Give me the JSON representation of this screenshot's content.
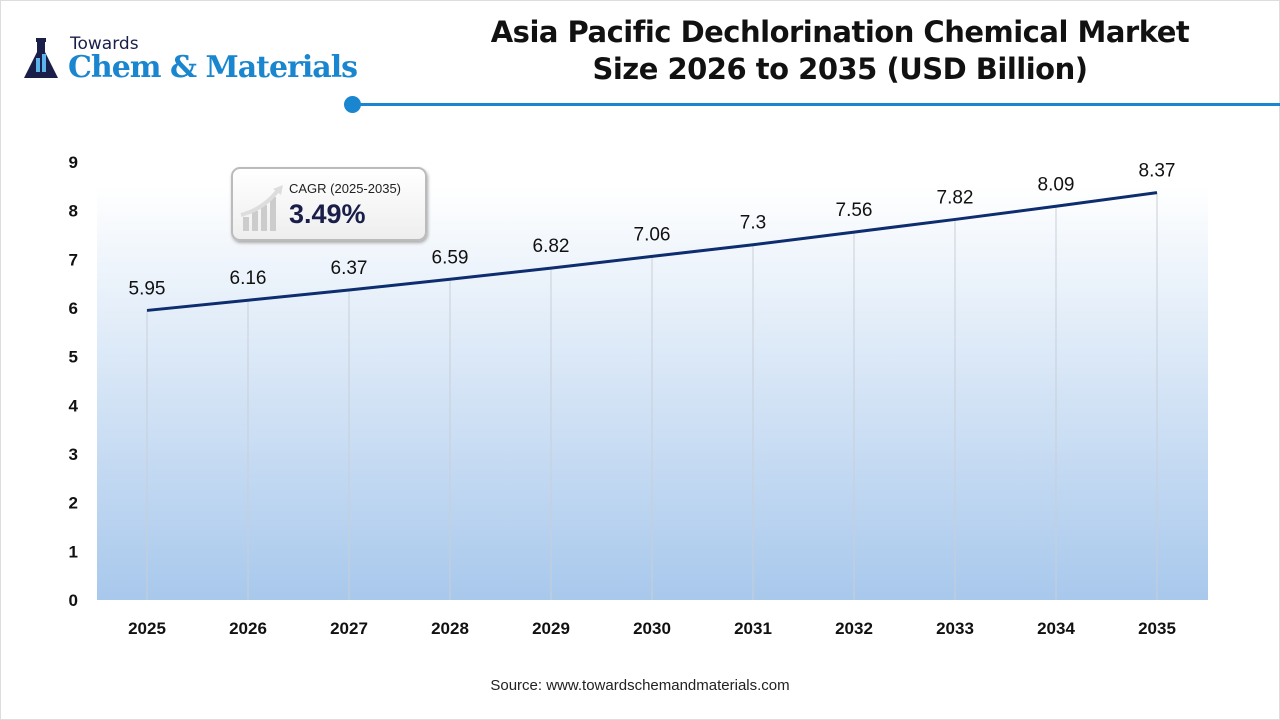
{
  "brand": {
    "line1": "Towards",
    "line2": "Chem & Materials",
    "color": "#1a86cf"
  },
  "title": "Asia Pacific Dechlorination Chemical Market Size 2026 to 2035 (USD Billion)",
  "cagr": {
    "label": "CAGR (2025-2035)",
    "value": "3.49%"
  },
  "source": "Source: www.towardschemandmaterials.com",
  "chart_data": {
    "type": "area",
    "categories": [
      "2025",
      "2026",
      "2027",
      "2028",
      "2029",
      "2030",
      "2031",
      "2032",
      "2033",
      "2034",
      "2035"
    ],
    "values": [
      5.95,
      6.16,
      6.37,
      6.59,
      6.82,
      7.06,
      7.3,
      7.56,
      7.82,
      8.09,
      8.37
    ],
    "labels": [
      "5.95",
      "6.16",
      "6.37",
      "6.59",
      "6.82",
      "7.06",
      "7.3",
      "7.56",
      "7.82",
      "8.09",
      "8.37"
    ],
    "yticks": [
      0,
      1,
      2,
      3,
      4,
      5,
      6,
      7,
      8,
      9
    ],
    "ylim": [
      0,
      9
    ],
    "line_color": "#0d2d6e",
    "fill_color": "#a8c8ec",
    "grid": "vertical"
  }
}
